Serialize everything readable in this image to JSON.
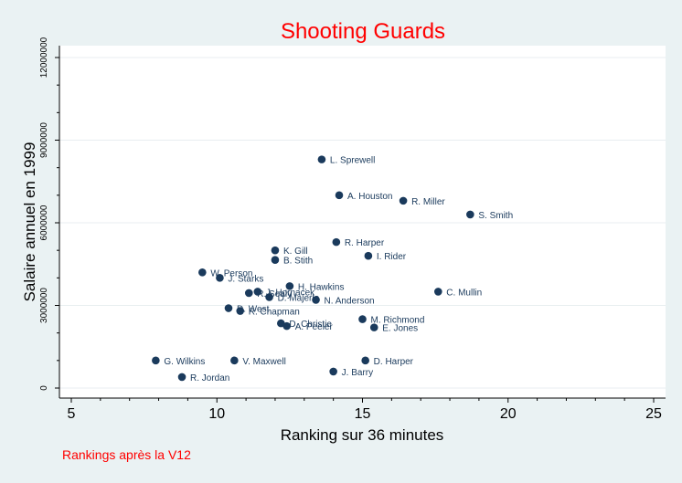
{
  "chart_data": {
    "type": "scatter",
    "title": "Shooting Guards",
    "xlabel": "Ranking sur 36 minutes",
    "ylabel": "Salaire annuel en 1999",
    "note": "Rankings après la V12",
    "xlim": [
      5,
      25
    ],
    "ylim": [
      0,
      12000000
    ],
    "x_ticks_major": [
      "5",
      "10",
      "15",
      "20",
      "25"
    ],
    "x_ticks_major_values": [
      5,
      10,
      15,
      20,
      25
    ],
    "y_ticks_major": [
      "0",
      "3000000",
      "6000000",
      "9000000",
      "12000000"
    ],
    "y_ticks_major_values": [
      0,
      3000000,
      6000000,
      9000000,
      12000000
    ],
    "grid": true,
    "colors": {
      "background": "#eaf2f3",
      "plot": "#ffffff",
      "marker": "#1a3a5c",
      "title": "#ff0000"
    },
    "points": [
      {
        "label": "L. Sprewell",
        "x": 13.6,
        "y": 8300000
      },
      {
        "label": "A. Houston",
        "x": 14.2,
        "y": 7000000
      },
      {
        "label": "R. Miller",
        "x": 16.4,
        "y": 6800000
      },
      {
        "label": "S. Smith",
        "x": 18.7,
        "y": 6300000
      },
      {
        "label": "R. Harper",
        "x": 14.1,
        "y": 5300000
      },
      {
        "label": "K. Gill",
        "x": 12.0,
        "y": 5000000
      },
      {
        "label": "B. Stith",
        "x": 12.0,
        "y": 4650000
      },
      {
        "label": "I. Rider",
        "x": 15.2,
        "y": 4800000
      },
      {
        "label": "W. Person",
        "x": 9.5,
        "y": 4200000
      },
      {
        "label": "J. Starks",
        "x": 10.1,
        "y": 4000000
      },
      {
        "label": "H. Hawkins",
        "x": 12.5,
        "y": 3700000
      },
      {
        "label": "J. Hornacek",
        "x": 11.4,
        "y": 3500000
      },
      {
        "label": "R. Sealy",
        "x": 11.1,
        "y": 3450000
      },
      {
        "label": "D. Majerle",
        "x": 11.8,
        "y": 3300000
      },
      {
        "label": "N. Anderson",
        "x": 13.4,
        "y": 3200000
      },
      {
        "label": "C. Mullin",
        "x": 17.6,
        "y": 3500000
      },
      {
        "label": "D. West",
        "x": 10.4,
        "y": 2900000
      },
      {
        "label": "R. Chapman",
        "x": 10.8,
        "y": 2800000
      },
      {
        "label": "D. Christie",
        "x": 12.2,
        "y": 2350000
      },
      {
        "label": "A. Peeler",
        "x": 12.4,
        "y": 2250000
      },
      {
        "label": "M. Richmond",
        "x": 15.0,
        "y": 2500000
      },
      {
        "label": "E. Jones",
        "x": 15.4,
        "y": 2200000
      },
      {
        "label": "G. Wilkins",
        "x": 7.9,
        "y": 1000000
      },
      {
        "label": "V. Maxwell",
        "x": 10.6,
        "y": 1000000
      },
      {
        "label": "D. Harper",
        "x": 15.1,
        "y": 1000000
      },
      {
        "label": "R. Jordan",
        "x": 8.8,
        "y": 400000
      },
      {
        "label": "J. Barry",
        "x": 14.0,
        "y": 600000
      }
    ]
  }
}
